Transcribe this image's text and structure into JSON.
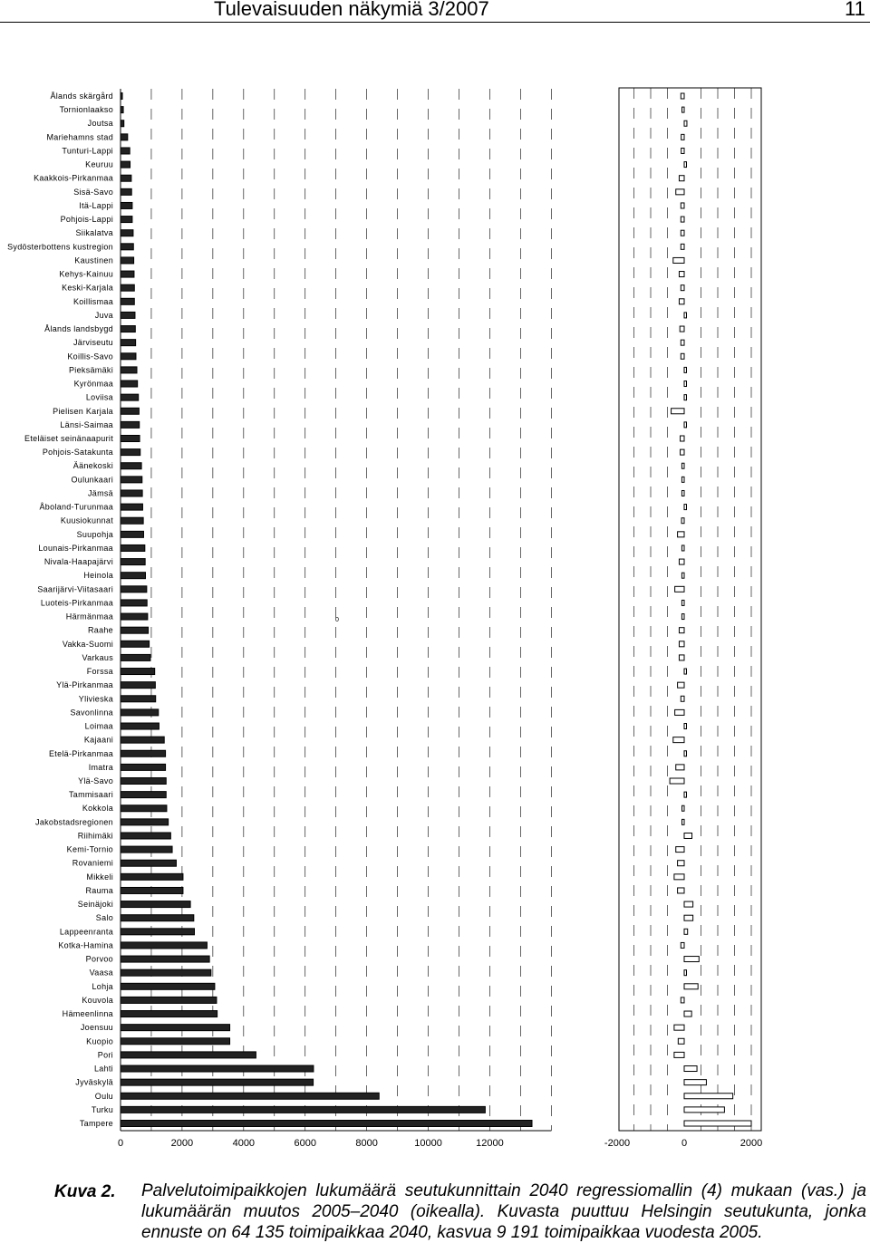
{
  "header": {
    "title": "Tulevaisuuden näkymiä 3/2007",
    "page_number": "11"
  },
  "chart_data": [
    {
      "type": "bar",
      "orientation": "horizontal",
      "categories": [
        "Ålands skärgård",
        "Tornionlaakso",
        "Joutsa",
        "Mariehamns stad",
        "Tunturi-Lappi",
        "Keuruu",
        "Kaakkois-Pirkanmaa",
        "Sisä-Savo",
        "Itä-Lappi",
        "Pohjois-Lappi",
        "Siikalatva",
        "Sydösterbottens kustregion",
        "Kaustinen",
        "Kehys-Kainuu",
        "Keski-Karjala",
        "Koillismaa",
        "Juva",
        "Ålands landsbygd",
        "Järviseutu",
        "Koillis-Savo",
        "Pieksämäki",
        "Kyrönmaa",
        "Loviisa",
        "Pielisen Karjala",
        "Länsi-Saimaa",
        "Eteläiset seinänaapurit",
        "Pohjois-Satakunta",
        "Äänekoski",
        "Oulunkaari",
        "Jämsä",
        "Åboland-Turunmaa",
        "Kuusiokunnat",
        "Suupohja",
        "Lounais-Pirkanmaa",
        "Nivala-Haapajärvi",
        "Heinola",
        "Saarijärvi-Viitasaari",
        "Luoteis-Pirkanmaa",
        "Härmänmaa",
        "Raahe",
        "Vakka-Suomi",
        "Varkaus",
        "Forssa",
        "Ylä-Pirkanmaa",
        "Ylivieska",
        "Savonlinna",
        "Loimaa",
        "Kajaani",
        "Etelä-Pirkanmaa",
        "Imatra",
        "Ylä-Savo",
        "Tammisaari",
        "Kokkola",
        "Jakobstadsregionen",
        "Riihimäki",
        "Kemi-Tornio",
        "Rovaniemi",
        "Mikkeli",
        "Rauma",
        "Seinäjoki",
        "Salo",
        "Lappeenranta",
        "Kotka-Hamina",
        "Porvoo",
        "Vaasa",
        "Lohja",
        "Kouvola",
        "Hämeenlinna",
        "Joensuu",
        "Kuopio",
        "Pori",
        "Lahti",
        "Jyväskylä",
        "Oulu",
        "Turku",
        "Tampere"
      ],
      "values": [
        60,
        90,
        110,
        230,
        300,
        310,
        350,
        360,
        380,
        380,
        410,
        420,
        430,
        440,
        450,
        450,
        470,
        480,
        490,
        500,
        530,
        550,
        580,
        600,
        610,
        620,
        640,
        680,
        700,
        710,
        720,
        740,
        750,
        790,
        800,
        810,
        850,
        860,
        880,
        900,
        930,
        970,
        1110,
        1130,
        1140,
        1230,
        1250,
        1420,
        1460,
        1460,
        1480,
        1480,
        1500,
        1550,
        1630,
        1680,
        1810,
        2030,
        2030,
        2270,
        2380,
        2400,
        2810,
        2890,
        2940,
        3060,
        3120,
        3140,
        3550,
        3550,
        4400,
        6270,
        6260,
        8400,
        11850,
        13370
      ],
      "xlim": [
        0,
        14000
      ],
      "xticks": [
        0,
        2000,
        4000,
        6000,
        8000,
        10000,
        12000
      ],
      "annotation": "0",
      "grid": "vertical dashed"
    },
    {
      "type": "bar",
      "orientation": "horizontal",
      "categories": [
        "Ålands skärgård",
        "Tornionlaakso",
        "Joutsa",
        "Mariehamns stad",
        "Tunturi-Lappi",
        "Keuruu",
        "Kaakkois-Pirkanmaa",
        "Sisä-Savo",
        "Itä-Lappi",
        "Pohjois-Lappi",
        "Siikalatva",
        "Sydösterbottens kustregion",
        "Kaustinen",
        "Kehys-Kainuu",
        "Keski-Karjala",
        "Koillismaa",
        "Juva",
        "Ålands landsbygd",
        "Järviseutu",
        "Koillis-Savo",
        "Pieksämäki",
        "Kyrönmaa",
        "Loviisa",
        "Pielisen Karjala",
        "Länsi-Saimaa",
        "Eteläiset seinänaapurit",
        "Pohjois-Satakunta",
        "Äänekoski",
        "Oulunkaari",
        "Jämsä",
        "Åboland-Turunmaa",
        "Kuusiokunnat",
        "Suupohja",
        "Lounais-Pirkanmaa",
        "Nivala-Haapajärvi",
        "Heinola",
        "Saarijärvi-Viitasaari",
        "Luoteis-Pirkanmaa",
        "Härmänmaa",
        "Raahe",
        "Vakka-Suomi",
        "Varkaus",
        "Forssa",
        "Ylä-Pirkanmaa",
        "Ylivieska",
        "Savonlinna",
        "Loimaa",
        "Kajaani",
        "Etelä-Pirkanmaa",
        "Imatra",
        "Ylä-Savo",
        "Tammisaari",
        "Kokkola",
        "Jakobstadsregionen",
        "Riihimäki",
        "Kemi-Tornio",
        "Rovaniemi",
        "Mikkeli",
        "Rauma",
        "Seinäjoki",
        "Salo",
        "Lappeenranta",
        "Kotka-Hamina",
        "Porvoo",
        "Vaasa",
        "Lohja",
        "Kouvola",
        "Hämeenlinna",
        "Joensuu",
        "Kuopio",
        "Pori",
        "Lahti",
        "Jyväskylä",
        "Oulu",
        "Turku",
        "Tampere"
      ],
      "values": [
        -100,
        -20,
        80,
        -90,
        -90,
        40,
        -150,
        -250,
        -100,
        -100,
        -100,
        -100,
        -330,
        -150,
        -100,
        -150,
        60,
        -130,
        -100,
        -100,
        0,
        0,
        0,
        -390,
        0,
        -120,
        -120,
        -70,
        -70,
        -70,
        40,
        -80,
        -200,
        -70,
        -150,
        -70,
        -280,
        -70,
        -70,
        -150,
        -150,
        -150,
        40,
        -200,
        -100,
        -280,
        60,
        -330,
        60,
        -250,
        -430,
        60,
        -60,
        -60,
        230,
        -250,
        -200,
        -300,
        -200,
        260,
        260,
        100,
        -100,
        440,
        40,
        410,
        -100,
        220,
        -300,
        -180,
        -300,
        380,
        660,
        1450,
        1200,
        2000
      ],
      "xlim": [
        -2300,
        2300
      ],
      "xticks": [
        -2000,
        0,
        2000
      ],
      "grid": "vertical dashed"
    }
  ],
  "caption": {
    "label": "Kuva 2.",
    "text": "Palvelutoimipaikkojen lukumäärä seutukunnittain 2040 regressiomallin (4) mukaan (vas.) ja lukumäärän muutos 2005–2040 (oikealla). Kuvasta puuttuu Helsingin seutukunta, jonka ennuste on 64 135 toimipaikkaa 2040, kasvua 9 191 toimipaikkaa vuodesta 2005."
  }
}
